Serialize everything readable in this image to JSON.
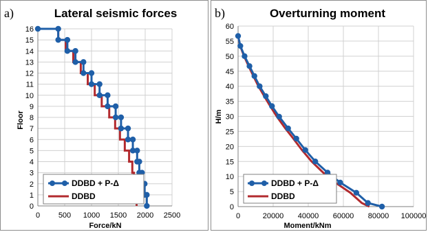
{
  "chart_data": [
    {
      "panel_label": "a)",
      "type": "line",
      "title": "Lateral seismic forces",
      "xlabel": "Force/kN",
      "ylabel": "Floor",
      "xlim": [
        0,
        2500
      ],
      "ylim": [
        0,
        16
      ],
      "xticks": [
        0,
        500,
        1000,
        1500,
        2000,
        2500
      ],
      "yticks": [
        0,
        1,
        2,
        3,
        4,
        5,
        6,
        7,
        8,
        9,
        10,
        11,
        12,
        13,
        14,
        15,
        16
      ],
      "grid": true,
      "legend_position": "bottom-left",
      "series": [
        {
          "name": "DDBD + P-Δ",
          "color": "#1f5fa8",
          "markers": true,
          "points": [
            [
              0,
              16
            ],
            [
              380,
              16
            ],
            [
              380,
              15
            ],
            [
              550,
              15
            ],
            [
              550,
              14
            ],
            [
              700,
              14
            ],
            [
              700,
              13
            ],
            [
              850,
              13
            ],
            [
              850,
              12
            ],
            [
              1000,
              12
            ],
            [
              1000,
              11
            ],
            [
              1150,
              11
            ],
            [
              1150,
              10
            ],
            [
              1300,
              10
            ],
            [
              1300,
              9
            ],
            [
              1450,
              9
            ],
            [
              1450,
              8
            ],
            [
              1550,
              8
            ],
            [
              1550,
              7
            ],
            [
              1680,
              7
            ],
            [
              1680,
              6
            ],
            [
              1770,
              6
            ],
            [
              1770,
              5
            ],
            [
              1850,
              5
            ],
            [
              1850,
              4
            ],
            [
              1890,
              4
            ],
            [
              1890,
              3
            ],
            [
              1940,
              3
            ],
            [
              1940,
              2
            ],
            [
              1990,
              2
            ],
            [
              1990,
              1
            ],
            [
              2030,
              1
            ],
            [
              2030,
              0
            ]
          ]
        },
        {
          "name": "DDBD",
          "color": "#b22a2e",
          "markers": false,
          "points": [
            [
              0,
              16
            ],
            [
              380,
              16
            ],
            [
              380,
              15
            ],
            [
              520,
              15
            ],
            [
              520,
              14
            ],
            [
              660,
              14
            ],
            [
              660,
              13
            ],
            [
              800,
              13
            ],
            [
              800,
              12
            ],
            [
              930,
              12
            ],
            [
              930,
              11
            ],
            [
              1060,
              11
            ],
            [
              1060,
              10
            ],
            [
              1190,
              10
            ],
            [
              1190,
              9
            ],
            [
              1330,
              9
            ],
            [
              1330,
              8
            ],
            [
              1440,
              8
            ],
            [
              1440,
              7
            ],
            [
              1530,
              7
            ],
            [
              1530,
              6
            ],
            [
              1620,
              6
            ],
            [
              1620,
              5
            ],
            [
              1700,
              5
            ],
            [
              1700,
              4
            ],
            [
              1760,
              4
            ],
            [
              1760,
              3
            ],
            [
              1790,
              3
            ],
            [
              1790,
              2
            ],
            [
              1810,
              2
            ],
            [
              1810,
              1
            ],
            [
              1840,
              1
            ],
            [
              1840,
              0
            ]
          ]
        }
      ]
    },
    {
      "panel_label": "b)",
      "type": "line",
      "title": "Overturning moment",
      "xlabel": "Moment/kNm",
      "ylabel": "H/m",
      "xlim": [
        0,
        100000
      ],
      "ylim": [
        0,
        60
      ],
      "xticks": [
        0,
        20000,
        40000,
        60000,
        80000,
        100000
      ],
      "yticks": [
        0,
        5,
        10,
        15,
        20,
        25,
        30,
        35,
        40,
        45,
        50,
        55,
        60
      ],
      "grid": true,
      "legend_position": "bottom-right",
      "series": [
        {
          "name": "DDBD + P-Δ",
          "color": "#1f5fa8",
          "markers": true,
          "points": [
            [
              0,
              56.7
            ],
            [
              1300,
              53.4
            ],
            [
              3700,
              50
            ],
            [
              6500,
              46.7
            ],
            [
              9300,
              43.4
            ],
            [
              12300,
              40
            ],
            [
              15800,
              36.7
            ],
            [
              19300,
              33.4
            ],
            [
              23400,
              29.9
            ],
            [
              28500,
              26
            ],
            [
              33200,
              22.6
            ],
            [
              38300,
              18.8
            ],
            [
              44000,
              15
            ],
            [
              51000,
              11.3
            ],
            [
              58200,
              8
            ],
            [
              67400,
              4.6
            ],
            [
              74000,
              1.2
            ],
            [
              82000,
              0
            ]
          ]
        },
        {
          "name": "DDBD",
          "color": "#b22a2e",
          "markers": false,
          "points": [
            [
              0,
              56.7
            ],
            [
              1200,
              53.4
            ],
            [
              3400,
              50
            ],
            [
              6000,
              46.7
            ],
            [
              8700,
              43.4
            ],
            [
              11600,
              40
            ],
            [
              14900,
              36.7
            ],
            [
              18300,
              33.4
            ],
            [
              22100,
              29.9
            ],
            [
              26900,
              26
            ],
            [
              31500,
              22.6
            ],
            [
              36400,
              18.8
            ],
            [
              41900,
              15
            ],
            [
              48500,
              11.3
            ],
            [
              55400,
              8
            ],
            [
              64000,
              4.6
            ],
            [
              70500,
              1.2
            ],
            [
              74800,
              0
            ]
          ]
        }
      ]
    }
  ]
}
